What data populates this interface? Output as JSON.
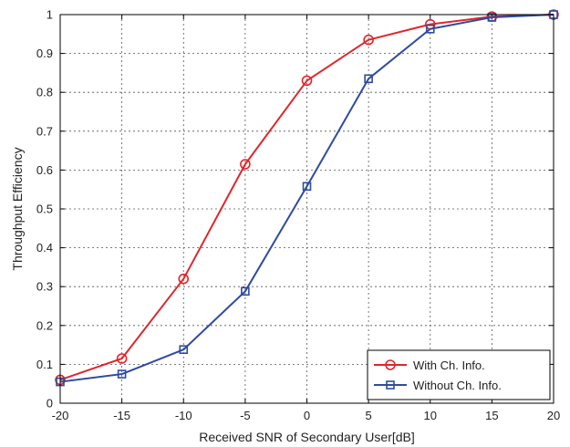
{
  "chart_data": {
    "type": "line",
    "title": "",
    "xlabel": "Received SNR of Secondary User[dB]",
    "ylabel": "Throughput Efficiency",
    "x": [
      -20,
      -15,
      -10,
      -5,
      0,
      5,
      10,
      15,
      20
    ],
    "xlim": [
      -20,
      20
    ],
    "ylim": [
      0,
      1
    ],
    "xticks": [
      "-20",
      "-15",
      "-10",
      "-5",
      "0",
      "5",
      "10",
      "15",
      "20"
    ],
    "yticks": [
      "0",
      "0.1",
      "0.2",
      "0.3",
      "0.4",
      "0.5",
      "0.6",
      "0.7",
      "0.8",
      "0.9",
      "1"
    ],
    "grid": true,
    "legend_position": "bottom-right",
    "series": [
      {
        "name": "With Ch. Info.",
        "color": "#e0262b",
        "marker": "circle",
        "values": [
          0.06,
          0.115,
          0.32,
          0.615,
          0.83,
          0.935,
          0.975,
          0.995,
          1.0
        ]
      },
      {
        "name": "Without Ch. Info.",
        "color": "#2f4b9e",
        "marker": "square",
        "values": [
          0.055,
          0.075,
          0.138,
          0.288,
          0.558,
          0.835,
          0.963,
          0.993,
          1.0
        ]
      }
    ]
  }
}
